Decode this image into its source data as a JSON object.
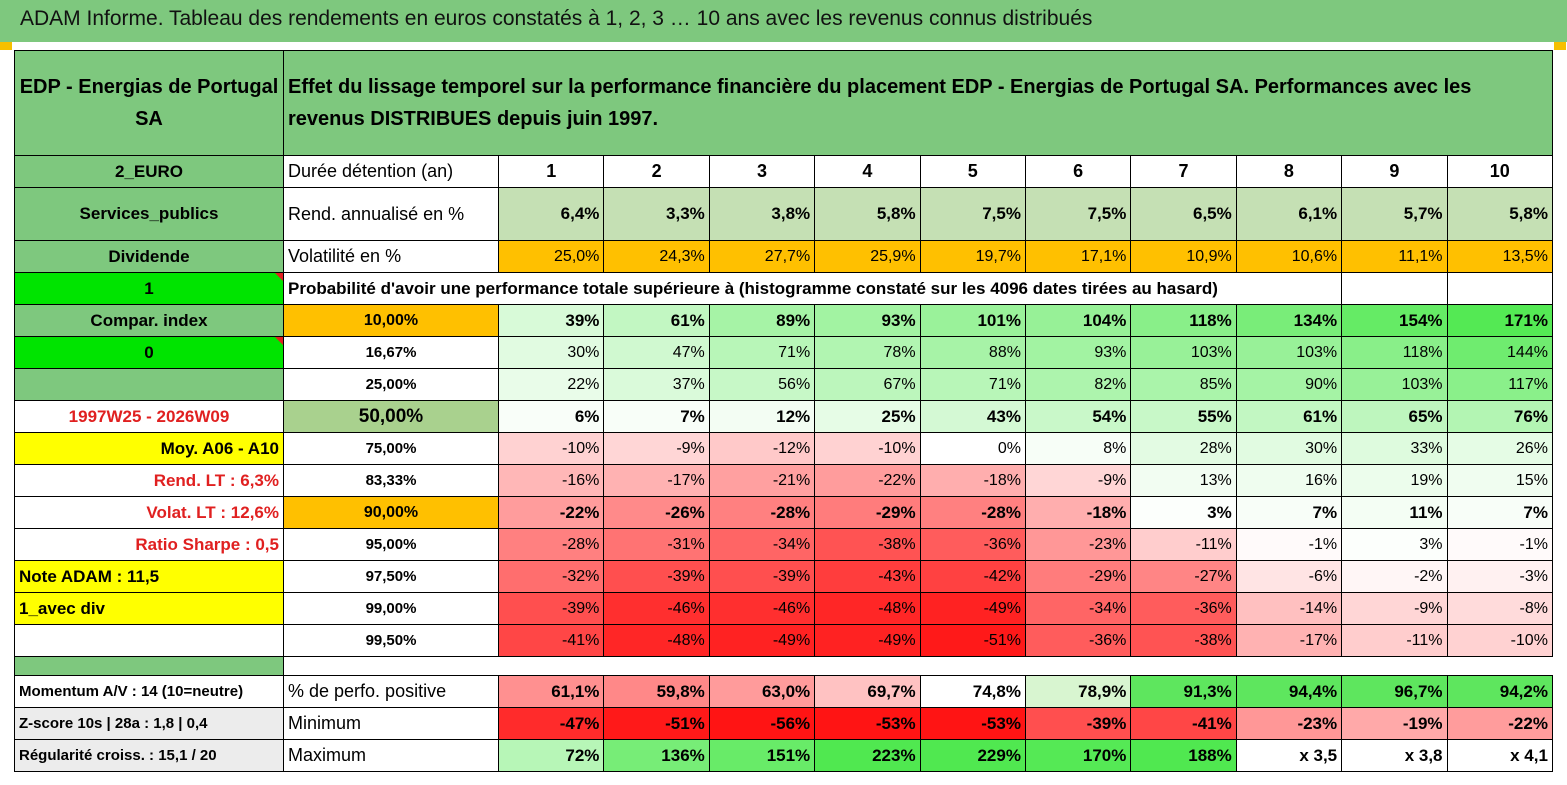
{
  "title": "ADAM Informe. Tableau des rendements en euros constatés à 1, 2, 3 … 10 ans avec les revenus connus distribués",
  "header": {
    "fund": "EDP - Energias de Portugal SA",
    "description": "Effet du lissage temporel sur la performance financière du placement EDP - Energias de Portugal SA. Performances avec les revenus DISTRIBUES depuis juin 1997."
  },
  "left_labels": {
    "currency": "2_EURO",
    "sector": "Services_publics",
    "income": "Dividende",
    "one": "1",
    "compar_index": "Compar. index",
    "zero": "0",
    "period": "1997W25 - 2026W09",
    "moy": "Moy. A06 - A10",
    "rend_lt": "Rend. LT :   6,3%",
    "volat_lt": "Volat. LT :   12,6%",
    "sharpe": "Ratio Sharpe :    0,5",
    "note": "Note ADAM : 11,5",
    "avec_div": "1_avec div"
  },
  "summary": {
    "duration_label": "Durée détention (an)",
    "years": [
      "1",
      "2",
      "3",
      "4",
      "5",
      "6",
      "7",
      "8",
      "9",
      "10"
    ],
    "rend_label": "Rend. annualisé en %",
    "rend": [
      "6,4%",
      "3,3%",
      "3,8%",
      "5,8%",
      "7,5%",
      "7,5%",
      "6,5%",
      "6,1%",
      "5,7%",
      "5,8%"
    ],
    "vol_label": "Volatilité en %",
    "vol": [
      "25,0%",
      "24,3%",
      "27,7%",
      "25,9%",
      "19,7%",
      "17,1%",
      "10,9%",
      "10,6%",
      "11,1%",
      "13,5%"
    ],
    "prob_label": "Probabilité d'avoir une performance totale supérieure à (histogramme constaté sur les 4096 dates tirées au hasard)"
  },
  "rows": [
    {
      "pct": "10,00%",
      "vals": [
        "39%",
        "61%",
        "89%",
        "93%",
        "101%",
        "104%",
        "118%",
        "134%",
        "154%",
        "171%"
      ]
    },
    {
      "pct": "16,67%",
      "vals": [
        "30%",
        "47%",
        "71%",
        "78%",
        "88%",
        "93%",
        "103%",
        "103%",
        "118%",
        "144%"
      ]
    },
    {
      "pct": "25,00%",
      "vals": [
        "22%",
        "37%",
        "56%",
        "67%",
        "71%",
        "82%",
        "85%",
        "90%",
        "103%",
        "117%"
      ]
    },
    {
      "pct": "50,00%",
      "vals": [
        "6%",
        "7%",
        "12%",
        "25%",
        "43%",
        "54%",
        "55%",
        "61%",
        "65%",
        "76%"
      ]
    },
    {
      "pct": "75,00%",
      "vals": [
        "-10%",
        "-9%",
        "-12%",
        "-10%",
        "0%",
        "8%",
        "28%",
        "30%",
        "33%",
        "26%"
      ]
    },
    {
      "pct": "83,33%",
      "vals": [
        "-16%",
        "-17%",
        "-21%",
        "-22%",
        "-18%",
        "-9%",
        "13%",
        "16%",
        "19%",
        "15%"
      ]
    },
    {
      "pct": "90,00%",
      "vals": [
        "-22%",
        "-26%",
        "-28%",
        "-29%",
        "-28%",
        "-18%",
        "3%",
        "7%",
        "11%",
        "7%"
      ]
    },
    {
      "pct": "95,00%",
      "vals": [
        "-28%",
        "-31%",
        "-34%",
        "-38%",
        "-36%",
        "-23%",
        "-11%",
        "-1%",
        "3%",
        "-1%"
      ]
    },
    {
      "pct": "97,50%",
      "vals": [
        "-32%",
        "-39%",
        "-39%",
        "-43%",
        "-42%",
        "-29%",
        "-27%",
        "-6%",
        "-2%",
        "-3%"
      ]
    },
    {
      "pct": "99,00%",
      "vals": [
        "-39%",
        "-46%",
        "-46%",
        "-48%",
        "-49%",
        "-34%",
        "-36%",
        "-14%",
        "-9%",
        "-8%"
      ]
    },
    {
      "pct": "99,50%",
      "vals": [
        "-41%",
        "-48%",
        "-49%",
        "-49%",
        "-51%",
        "-36%",
        "-38%",
        "-17%",
        "-11%",
        "-10%"
      ]
    }
  ],
  "bottom": [
    {
      "left": "Momentum A/V : 14 (10=neutre)",
      "label": "% de perfo. positive",
      "vals": [
        "61,1%",
        "59,8%",
        "63,0%",
        "69,7%",
        "74,8%",
        "78,9%",
        "91,3%",
        "94,4%",
        "96,7%",
        "94,2%"
      ]
    },
    {
      "left": "Z-score 10s | 28a : 1,8 | 0,4",
      "label": "Minimum",
      "vals": [
        "-47%",
        "-51%",
        "-56%",
        "-53%",
        "-53%",
        "-39%",
        "-41%",
        "-23%",
        "-19%",
        "-22%"
      ]
    },
    {
      "left": "Régularité croiss. : 15,1 / 20",
      "label": "Maximum",
      "vals": [
        "72%",
        "136%",
        "151%",
        "223%",
        "229%",
        "170%",
        "188%",
        "x 3,5",
        "x 3,8",
        "x 4,1"
      ]
    }
  ],
  "colors": {
    "header_green": "#7ec87e",
    "bright_green": "#00e400",
    "orange": "#ffc000",
    "yellow": "#ffff00",
    "label_red": "#e02020"
  }
}
